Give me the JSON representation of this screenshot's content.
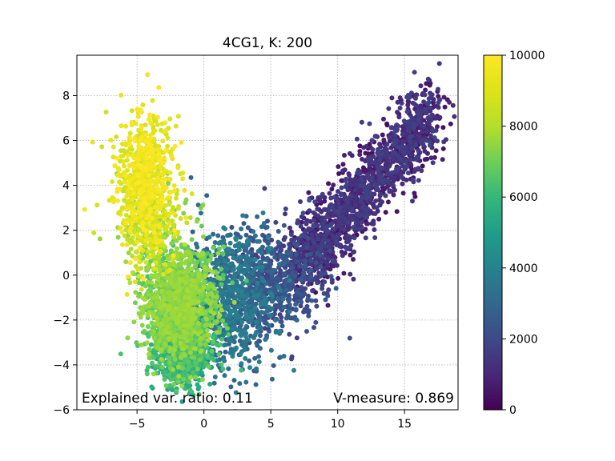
{
  "chart_data": {
    "type": "scatter",
    "title": "4CG1, K: 200",
    "xlabel": "",
    "ylabel": "",
    "xlim": [
      -9.5,
      19
    ],
    "ylim": [
      -6,
      9.8
    ],
    "xticks": [
      -5,
      0,
      5,
      10,
      15
    ],
    "yticks": [
      -6,
      -4,
      -2,
      0,
      2,
      4,
      6,
      8
    ],
    "grid": true,
    "colormap": "viridis",
    "colorbar": {
      "range": [
        0,
        10000
      ],
      "ticks": [
        0,
        2000,
        4000,
        6000,
        8000,
        10000
      ]
    },
    "annotations": {
      "left": "Explained var. ratio: 0.11",
      "right": "V-measure: 0.869"
    },
    "clusters": [
      {
        "value_range": [
          8500,
          10000
        ],
        "center": [
          -4.5,
          4.2
        ],
        "spread": [
          1.1,
          1.5
        ],
        "count": 700
      },
      {
        "value_range": [
          7200,
          8800
        ],
        "center": [
          -4.0,
          2.3
        ],
        "spread": [
          1.2,
          0.9
        ],
        "count": 250
      },
      {
        "value_range": [
          6300,
          7800
        ],
        "center": [
          -1.8,
          -1.3
        ],
        "spread": [
          1.3,
          1.3
        ],
        "count": 1500
      },
      {
        "value_range": [
          4800,
          6500
        ],
        "center": [
          -1.5,
          -3.6
        ],
        "spread": [
          1.0,
          0.7
        ],
        "count": 600
      },
      {
        "value_range": [
          2500,
          4000
        ],
        "center": [
          2.2,
          -1.0
        ],
        "spread": [
          1.6,
          1.5
        ],
        "count": 800
      },
      {
        "value_range": [
          1600,
          2600
        ],
        "center": [
          5.5,
          -0.3
        ],
        "spread": [
          1.7,
          1.1
        ],
        "count": 500
      },
      {
        "value_range": [
          300,
          1800
        ],
        "trend": {
          "x": [
            7,
            17
          ],
          "y": [
            0.3,
            7.2
          ]
        },
        "spread": [
          0.8,
          0.8
        ],
        "count": 1500
      }
    ]
  }
}
